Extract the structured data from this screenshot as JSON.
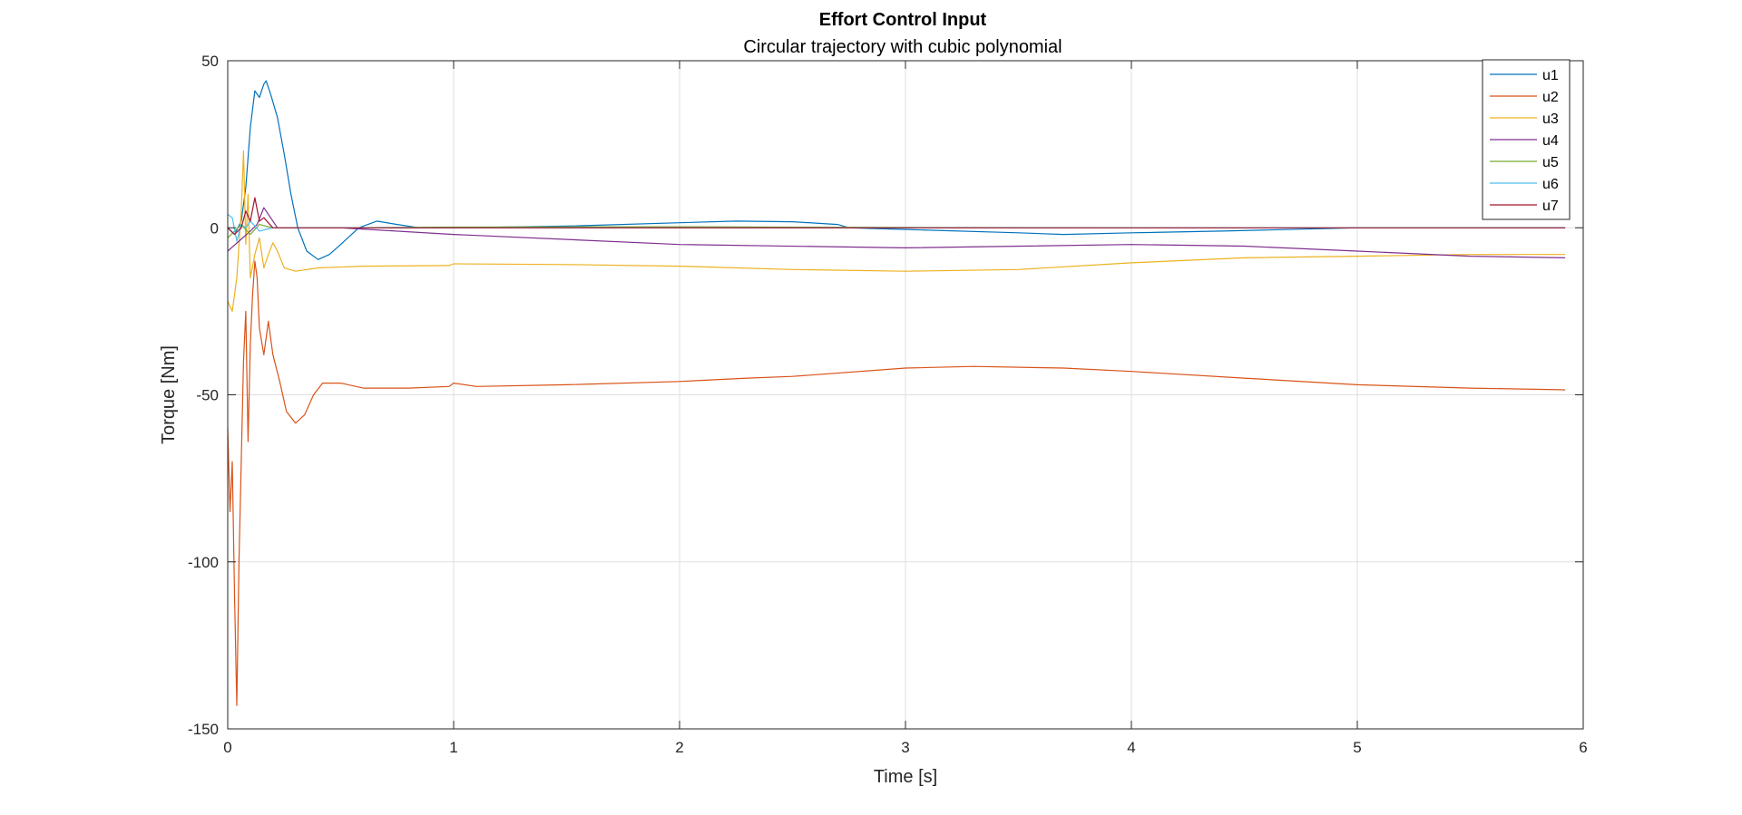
{
  "chart_data": {
    "type": "line",
    "title": "Effort Control Input",
    "subtitle": "Circular trajectory with cubic polynomial",
    "xlabel": "Time [s]",
    "ylabel": "Torque [Nm]",
    "xlim": [
      0,
      6
    ],
    "ylim": [
      -150,
      50
    ],
    "xticks": [
      0,
      1,
      2,
      3,
      4,
      5,
      6
    ],
    "yticks": [
      -150,
      -100,
      -50,
      0,
      50
    ],
    "xtick_labels": [
      "0",
      "1",
      "2",
      "3",
      "4",
      "5",
      "6"
    ],
    "ytick_labels": [
      "-150",
      "-100",
      "-50",
      "0",
      "50"
    ],
    "grid": true,
    "legend_position": "top-right",
    "series": [
      {
        "name": "u1",
        "color": "#0072BD",
        "points": [
          [
            0,
            0
          ],
          [
            0.03,
            -2
          ],
          [
            0.06,
            2
          ],
          [
            0.08,
            12
          ],
          [
            0.1,
            30
          ],
          [
            0.12,
            41
          ],
          [
            0.14,
            39
          ],
          [
            0.16,
            43
          ],
          [
            0.17,
            44
          ],
          [
            0.19,
            40
          ],
          [
            0.22,
            33
          ],
          [
            0.25,
            22
          ],
          [
            0.28,
            10
          ],
          [
            0.31,
            0
          ],
          [
            0.35,
            -7
          ],
          [
            0.4,
            -9.5
          ],
          [
            0.45,
            -8
          ],
          [
            0.5,
            -5
          ],
          [
            0.58,
            0
          ],
          [
            0.66,
            2
          ],
          [
            0.75,
            1
          ],
          [
            0.85,
            0
          ],
          [
            1.0,
            0
          ],
          [
            1.5,
            0.5
          ],
          [
            2.0,
            1.5
          ],
          [
            2.25,
            2
          ],
          [
            2.5,
            1.8
          ],
          [
            2.7,
            1
          ],
          [
            2.75,
            0
          ],
          [
            3.0,
            -0.5
          ],
          [
            3.5,
            -1.5
          ],
          [
            3.7,
            -2
          ],
          [
            4.0,
            -1.5
          ],
          [
            4.4,
            -1
          ],
          [
            5.0,
            0
          ],
          [
            5.5,
            0
          ],
          [
            5.92,
            0
          ]
        ]
      },
      {
        "name": "u2",
        "color": "#D95319",
        "points": [
          [
            0,
            -60
          ],
          [
            0.01,
            -85
          ],
          [
            0.02,
            -70
          ],
          [
            0.03,
            -110
          ],
          [
            0.04,
            -143
          ],
          [
            0.05,
            -100
          ],
          [
            0.06,
            -70
          ],
          [
            0.07,
            -40
          ],
          [
            0.08,
            -25
          ],
          [
            0.09,
            -64
          ],
          [
            0.1,
            -35
          ],
          [
            0.11,
            -20
          ],
          [
            0.12,
            -10
          ],
          [
            0.13,
            -15
          ],
          [
            0.14,
            -30
          ],
          [
            0.16,
            -38
          ],
          [
            0.18,
            -28
          ],
          [
            0.2,
            -38
          ],
          [
            0.23,
            -46
          ],
          [
            0.26,
            -55
          ],
          [
            0.3,
            -58.5
          ],
          [
            0.34,
            -56
          ],
          [
            0.38,
            -50
          ],
          [
            0.42,
            -46.5
          ],
          [
            0.5,
            -46.5
          ],
          [
            0.6,
            -48
          ],
          [
            0.8,
            -48
          ],
          [
            0.98,
            -47.5
          ],
          [
            1.0,
            -46.5
          ],
          [
            1.1,
            -47.5
          ],
          [
            1.5,
            -47
          ],
          [
            2.0,
            -46
          ],
          [
            2.3,
            -45
          ],
          [
            2.5,
            -44.5
          ],
          [
            3.0,
            -42
          ],
          [
            3.3,
            -41.5
          ],
          [
            3.7,
            -42
          ],
          [
            4.0,
            -43
          ],
          [
            4.5,
            -45
          ],
          [
            5.0,
            -47
          ],
          [
            5.5,
            -48
          ],
          [
            5.92,
            -48.5
          ]
        ]
      },
      {
        "name": "u3",
        "color": "#EDB120",
        "points": [
          [
            0,
            -22
          ],
          [
            0.02,
            -25
          ],
          [
            0.04,
            -15
          ],
          [
            0.06,
            5
          ],
          [
            0.07,
            23
          ],
          [
            0.08,
            -5
          ],
          [
            0.09,
            10
          ],
          [
            0.1,
            -15
          ],
          [
            0.12,
            -8
          ],
          [
            0.14,
            -3
          ],
          [
            0.16,
            -12
          ],
          [
            0.18,
            -8
          ],
          [
            0.2,
            -4.5
          ],
          [
            0.22,
            -7
          ],
          [
            0.25,
            -12
          ],
          [
            0.3,
            -13
          ],
          [
            0.4,
            -12
          ],
          [
            0.6,
            -11.5
          ],
          [
            0.98,
            -11.3
          ],
          [
            1.0,
            -10.8
          ],
          [
            1.5,
            -11
          ],
          [
            2.0,
            -11.5
          ],
          [
            2.5,
            -12.5
          ],
          [
            3.0,
            -13
          ],
          [
            3.5,
            -12.5
          ],
          [
            4.0,
            -10.5
          ],
          [
            4.5,
            -9
          ],
          [
            5.0,
            -8.5
          ],
          [
            5.5,
            -8
          ],
          [
            5.92,
            -8
          ]
        ]
      },
      {
        "name": "u4",
        "color": "#7E2F8E",
        "points": [
          [
            0,
            -7
          ],
          [
            0.05,
            -4
          ],
          [
            0.1,
            -1
          ],
          [
            0.13,
            1
          ],
          [
            0.16,
            6
          ],
          [
            0.19,
            3
          ],
          [
            0.22,
            0
          ],
          [
            0.3,
            0
          ],
          [
            0.5,
            0
          ],
          [
            1.0,
            -2
          ],
          [
            2.0,
            -5
          ],
          [
            3.0,
            -6
          ],
          [
            4.0,
            -5
          ],
          [
            4.5,
            -5.5
          ],
          [
            5.0,
            -7
          ],
          [
            5.5,
            -8.5
          ],
          [
            5.92,
            -9
          ]
        ]
      },
      {
        "name": "u5",
        "color": "#77AC30",
        "points": [
          [
            0,
            -3
          ],
          [
            0.03,
            -1
          ],
          [
            0.06,
            1
          ],
          [
            0.1,
            -2
          ],
          [
            0.14,
            1
          ],
          [
            0.2,
            0
          ],
          [
            0.5,
            0
          ],
          [
            1.0,
            0.2
          ],
          [
            2.0,
            0.3
          ],
          [
            3.0,
            0.1
          ],
          [
            4.0,
            0
          ],
          [
            5.0,
            0
          ],
          [
            5.92,
            0
          ]
        ]
      },
      {
        "name": "u6",
        "color": "#4DBEEE",
        "points": [
          [
            0,
            4
          ],
          [
            0.02,
            3
          ],
          [
            0.04,
            -4
          ],
          [
            0.06,
            1
          ],
          [
            0.08,
            0
          ],
          [
            0.1,
            2
          ],
          [
            0.14,
            -1
          ],
          [
            0.2,
            0
          ],
          [
            0.5,
            0
          ],
          [
            1.0,
            0
          ],
          [
            3.0,
            0
          ],
          [
            5.92,
            0
          ]
        ]
      },
      {
        "name": "u7",
        "color": "#A2142F",
        "points": [
          [
            0,
            0
          ],
          [
            0.03,
            -2
          ],
          [
            0.06,
            0
          ],
          [
            0.08,
            5
          ],
          [
            0.1,
            2
          ],
          [
            0.12,
            9
          ],
          [
            0.14,
            2
          ],
          [
            0.16,
            3
          ],
          [
            0.2,
            0
          ],
          [
            0.3,
            0
          ],
          [
            1.0,
            0
          ],
          [
            3.0,
            0
          ],
          [
            5.92,
            0
          ]
        ]
      }
    ]
  }
}
